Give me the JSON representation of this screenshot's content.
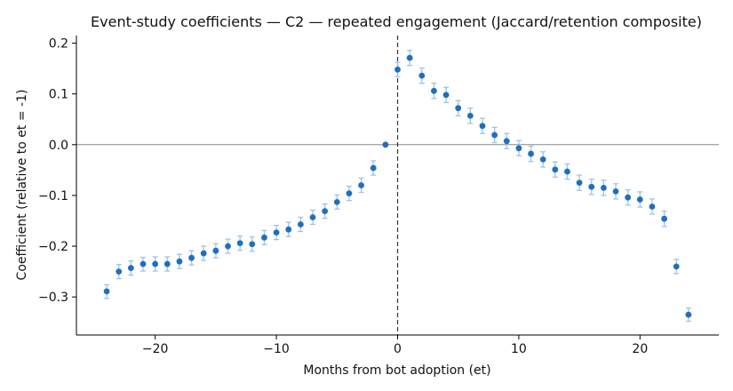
{
  "chart_data": {
    "type": "scatter",
    "title": "Event-study coefficients — C2 — repeated engagement (Jaccard/retention composite)",
    "xlabel": "Months from bot adoption (et)",
    "ylabel": "Coefficient (relative to et = -1)",
    "xlim": [
      -26.5,
      26.5
    ],
    "ylim": [
      -0.375,
      0.215
    ],
    "xticks": [
      -20,
      -10,
      0,
      10,
      20
    ],
    "xtick_labels": [
      "−20",
      "−10",
      "0",
      "10",
      "20"
    ],
    "yticks": [
      -0.3,
      -0.2,
      -0.1,
      0.0,
      0.1,
      0.2
    ],
    "ytick_labels": [
      "−0.3",
      "−0.2",
      "−0.1",
      "0.0",
      "0.1",
      "0.2"
    ],
    "grid": false,
    "reference_lines": {
      "horizontal_y": 0,
      "vertical_x": 0
    },
    "colors": {
      "point": "#1f6fbf",
      "error_bar": "#9dc3e6",
      "zero_line": "#888888",
      "vertical_line": "#333333",
      "axis": "#000000"
    },
    "points": [
      {
        "x": -24,
        "y": -0.289,
        "lo": -0.303,
        "hi": -0.276
      },
      {
        "x": -23,
        "y": -0.25,
        "lo": -0.264,
        "hi": -0.236
      },
      {
        "x": -22,
        "y": -0.243,
        "lo": -0.257,
        "hi": -0.229
      },
      {
        "x": -21,
        "y": -0.235,
        "lo": -0.249,
        "hi": -0.222
      },
      {
        "x": -20,
        "y": -0.235,
        "lo": -0.249,
        "hi": -0.221
      },
      {
        "x": -19,
        "y": -0.235,
        "lo": -0.249,
        "hi": -0.221
      },
      {
        "x": -18,
        "y": -0.23,
        "lo": -0.244,
        "hi": -0.216
      },
      {
        "x": -17,
        "y": -0.223,
        "lo": -0.237,
        "hi": -0.209
      },
      {
        "x": -16,
        "y": -0.214,
        "lo": -0.228,
        "hi": -0.2
      },
      {
        "x": -15,
        "y": -0.209,
        "lo": -0.223,
        "hi": -0.195
      },
      {
        "x": -14,
        "y": -0.2,
        "lo": -0.214,
        "hi": -0.186
      },
      {
        "x": -13,
        "y": -0.194,
        "lo": -0.208,
        "hi": -0.18
      },
      {
        "x": -12,
        "y": -0.196,
        "lo": -0.21,
        "hi": -0.182
      },
      {
        "x": -11,
        "y": -0.183,
        "lo": -0.197,
        "hi": -0.169
      },
      {
        "x": -10,
        "y": -0.173,
        "lo": -0.187,
        "hi": -0.159
      },
      {
        "x": -9,
        "y": -0.167,
        "lo": -0.181,
        "hi": -0.153
      },
      {
        "x": -8,
        "y": -0.157,
        "lo": -0.171,
        "hi": -0.143
      },
      {
        "x": -7,
        "y": -0.143,
        "lo": -0.157,
        "hi": -0.129
      },
      {
        "x": -6,
        "y": -0.131,
        "lo": -0.145,
        "hi": -0.117
      },
      {
        "x": -5,
        "y": -0.113,
        "lo": -0.127,
        "hi": -0.099
      },
      {
        "x": -4,
        "y": -0.096,
        "lo": -0.11,
        "hi": -0.082
      },
      {
        "x": -3,
        "y": -0.08,
        "lo": -0.094,
        "hi": -0.066
      },
      {
        "x": -2,
        "y": -0.046,
        "lo": -0.06,
        "hi": -0.032
      },
      {
        "x": -1,
        "y": 0.0,
        "lo": 0.0,
        "hi": 0.0
      },
      {
        "x": 0,
        "y": 0.148,
        "lo": 0.134,
        "hi": 0.162
      },
      {
        "x": 1,
        "y": 0.171,
        "lo": 0.156,
        "hi": 0.186
      },
      {
        "x": 2,
        "y": 0.136,
        "lo": 0.121,
        "hi": 0.151
      },
      {
        "x": 3,
        "y": 0.106,
        "lo": 0.091,
        "hi": 0.121
      },
      {
        "x": 4,
        "y": 0.098,
        "lo": 0.083,
        "hi": 0.113
      },
      {
        "x": 5,
        "y": 0.072,
        "lo": 0.057,
        "hi": 0.087
      },
      {
        "x": 6,
        "y": 0.057,
        "lo": 0.042,
        "hi": 0.072
      },
      {
        "x": 7,
        "y": 0.037,
        "lo": 0.022,
        "hi": 0.052
      },
      {
        "x": 8,
        "y": 0.019,
        "lo": 0.004,
        "hi": 0.034
      },
      {
        "x": 9,
        "y": 0.007,
        "lo": -0.008,
        "hi": 0.022
      },
      {
        "x": 10,
        "y": -0.007,
        "lo": -0.022,
        "hi": 0.008
      },
      {
        "x": 11,
        "y": -0.018,
        "lo": -0.033,
        "hi": -0.003
      },
      {
        "x": 12,
        "y": -0.029,
        "lo": -0.044,
        "hi": -0.014
      },
      {
        "x": 13,
        "y": -0.049,
        "lo": -0.064,
        "hi": -0.034
      },
      {
        "x": 14,
        "y": -0.053,
        "lo": -0.068,
        "hi": -0.038
      },
      {
        "x": 15,
        "y": -0.075,
        "lo": -0.09,
        "hi": -0.06
      },
      {
        "x": 16,
        "y": -0.083,
        "lo": -0.098,
        "hi": -0.068
      },
      {
        "x": 17,
        "y": -0.085,
        "lo": -0.1,
        "hi": -0.07
      },
      {
        "x": 18,
        "y": -0.092,
        "lo": -0.107,
        "hi": -0.077
      },
      {
        "x": 19,
        "y": -0.104,
        "lo": -0.119,
        "hi": -0.089
      },
      {
        "x": 20,
        "y": -0.108,
        "lo": -0.123,
        "hi": -0.093
      },
      {
        "x": 21,
        "y": -0.122,
        "lo": -0.137,
        "hi": -0.107
      },
      {
        "x": 22,
        "y": -0.146,
        "lo": -0.161,
        "hi": -0.131
      },
      {
        "x": 23,
        "y": -0.24,
        "lo": -0.254,
        "hi": -0.226
      },
      {
        "x": 24,
        "y": -0.335,
        "lo": -0.348,
        "hi": -0.322
      }
    ]
  }
}
